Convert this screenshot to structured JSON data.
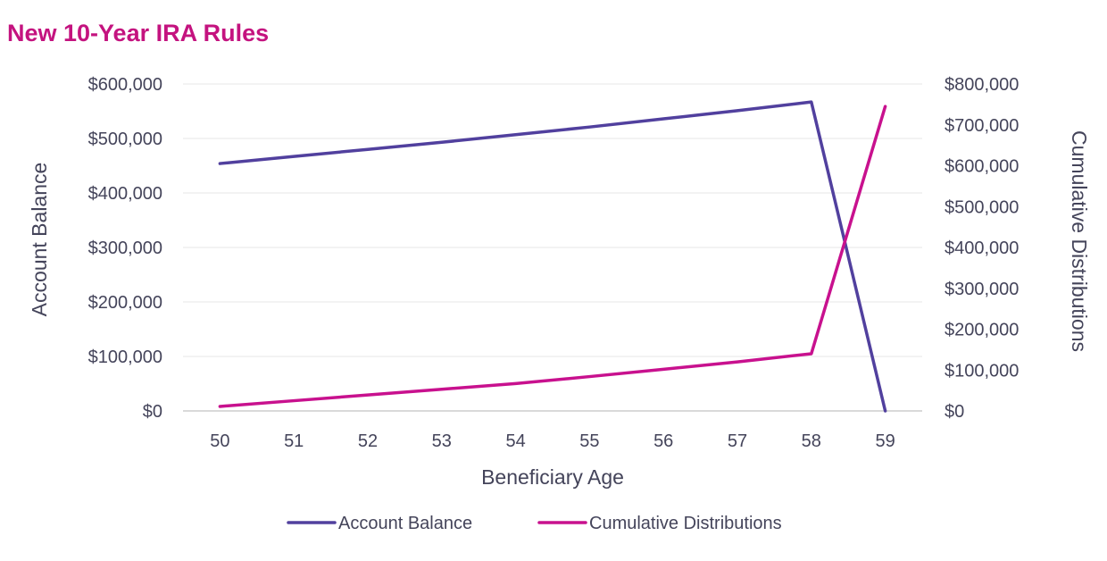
{
  "chart_data": {
    "type": "line",
    "title": "New 10-Year IRA Rules",
    "xlabel": "Beneficiary Age",
    "ylabel": "Account Balance",
    "y2label": "Cumulative Distributions",
    "categories": [
      "50",
      "51",
      "52",
      "53",
      "54",
      "55",
      "56",
      "57",
      "58",
      "59"
    ],
    "ylim": [
      0,
      600000
    ],
    "y2lim": [
      0,
      800000
    ],
    "yticks": [
      "$0",
      "$100,000",
      "$200,000",
      "$300,000",
      "$400,000",
      "$500,000",
      "$600,000"
    ],
    "y2ticks": [
      "$0",
      "$100,000",
      "$200,000",
      "$300,000",
      "$400,000",
      "$500,000",
      "$600,000",
      "$700,000",
      "$800,000"
    ],
    "grid": true,
    "legend_position": "bottom",
    "series": [
      {
        "name": "Account Balance",
        "axis": "left",
        "color": "#51409e",
        "values": [
          454000,
          467000,
          480000,
          493000,
          507000,
          521000,
          536000,
          551000,
          567000,
          0
        ]
      },
      {
        "name": "Cumulative Distributions",
        "axis": "right",
        "color": "#c8118e",
        "values": [
          11000,
          25000,
          39000,
          53000,
          67000,
          84000,
          102000,
          120000,
          140000,
          745000
        ]
      }
    ]
  }
}
